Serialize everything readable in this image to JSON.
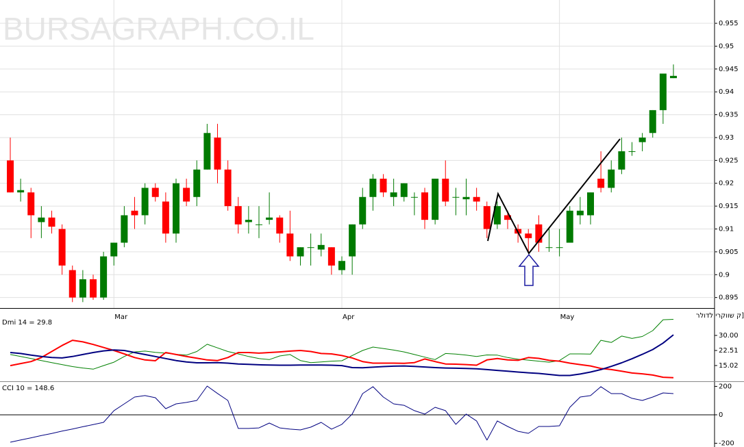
{
  "chart_data": [
    {
      "type": "candlestick",
      "title": "ק שווקרי לדולר]",
      "watermark": "BURSAGRAPH.CO.IL",
      "categories": [
        null,
        null,
        null,
        null,
        null,
        null,
        null,
        null,
        null,
        null,
        "Mar",
        null,
        null,
        null,
        null,
        null,
        null,
        null,
        null,
        null,
        null,
        null,
        null,
        null,
        null,
        null,
        null,
        null,
        null,
        null,
        null,
        null,
        "Apr",
        null,
        null,
        null,
        null,
        null,
        null,
        null,
        null,
        null,
        null,
        null,
        null,
        null,
        null,
        null,
        null,
        null,
        null,
        null,
        null,
        "May",
        null,
        null,
        null,
        null,
        null,
        null,
        null,
        null,
        null,
        null,
        null
      ],
      "open": [
        0.925,
        0.918,
        0.918,
        0.9115,
        0.9125,
        0.91,
        0.901,
        0.895,
        0.899,
        0.895,
        0.904,
        0.907,
        0.914,
        0.913,
        0.919,
        0.916,
        0.909,
        0.919,
        0.917,
        0.923,
        0.93,
        0.923,
        0.915,
        0.9115,
        0.911,
        0.912,
        0.9125,
        0.909,
        0.904,
        0.906,
        0.9055,
        0.906,
        0.901,
        0.904,
        0.911,
        0.917,
        0.921,
        0.917,
        0.917,
        0.917,
        0.918,
        0.912,
        0.921,
        0.917,
        0.9165,
        0.917,
        0.915,
        0.911,
        0.913,
        0.91,
        0.909,
        0.911,
        0.906,
        0.906,
        0.907,
        0.913,
        0.913,
        0.921,
        0.919,
        0.923,
        0.927,
        0.929,
        0.931,
        0.936,
        0.943
      ],
      "high": [
        0.93,
        0.921,
        0.919,
        0.915,
        0.914,
        0.911,
        0.902,
        0.901,
        0.9,
        0.905,
        0.907,
        0.915,
        0.917,
        0.92,
        0.92,
        0.918,
        0.921,
        0.921,
        0.925,
        0.933,
        0.933,
        0.925,
        0.917,
        0.915,
        0.915,
        0.918,
        0.913,
        0.914,
        0.906,
        0.909,
        0.909,
        0.906,
        0.904,
        0.911,
        0.919,
        0.922,
        0.922,
        0.921,
        0.92,
        0.918,
        0.919,
        0.921,
        0.925,
        0.919,
        0.921,
        0.919,
        0.916,
        0.916,
        0.914,
        0.911,
        0.91,
        0.913,
        0.91,
        0.91,
        0.915,
        0.917,
        0.918,
        0.927,
        0.925,
        0.93,
        0.929,
        0.931,
        0.936,
        0.944,
        0.946
      ],
      "low": [
        0.918,
        0.916,
        0.908,
        0.908,
        0.909,
        0.9,
        0.894,
        0.894,
        0.8945,
        0.8945,
        0.902,
        0.906,
        0.91,
        0.911,
        0.916,
        0.907,
        0.907,
        0.915,
        0.915,
        0.923,
        0.92,
        0.914,
        0.909,
        0.909,
        0.908,
        0.911,
        0.907,
        0.903,
        0.902,
        0.902,
        0.904,
        0.9,
        0.9,
        0.9,
        0.91,
        0.914,
        0.917,
        0.915,
        0.916,
        0.913,
        0.91,
        0.911,
        0.915,
        0.913,
        0.913,
        0.914,
        0.908,
        0.91,
        0.91,
        0.907,
        0.905,
        0.905,
        0.905,
        0.904,
        0.907,
        0.911,
        0.911,
        0.918,
        0.918,
        0.922,
        0.926,
        0.927,
        0.93,
        0.933,
        0.943
      ],
      "close": [
        0.918,
        0.9185,
        0.913,
        0.9125,
        0.9105,
        0.902,
        0.895,
        0.899,
        0.895,
        0.904,
        0.907,
        0.913,
        0.913,
        0.919,
        0.917,
        0.909,
        0.92,
        0.916,
        0.923,
        0.931,
        0.923,
        0.915,
        0.911,
        0.912,
        0.911,
        0.9125,
        0.909,
        0.904,
        0.906,
        0.906,
        0.9065,
        0.902,
        0.903,
        0.911,
        0.917,
        0.921,
        0.918,
        0.918,
        0.92,
        0.917,
        0.912,
        0.921,
        0.916,
        0.917,
        0.917,
        0.916,
        0.91,
        0.915,
        0.912,
        0.909,
        0.908,
        0.907,
        0.906,
        0.906,
        0.914,
        0.914,
        0.918,
        0.919,
        0.923,
        0.927,
        0.927,
        0.93,
        0.936,
        0.944,
        0.9435
      ],
      "up_color": "#007a00",
      "down_color": "#ff0000",
      "ylim": [
        0.8927,
        0.9601
      ],
      "yticks": [
        0.895,
        0.9,
        0.905,
        0.91,
        0.915,
        0.92,
        0.925,
        0.93,
        0.935,
        0.94,
        0.945,
        0.95,
        0.955
      ],
      "grid": true
    },
    {
      "type": "line",
      "title": "Dmi 14 = 29.8",
      "series": [
        {
          "color": "#008000",
          "width": 1,
          "values": [
            20.5,
            19.5,
            18.5,
            17.5,
            16.5,
            15.5,
            14.5,
            13.8,
            13.2,
            15,
            16.7,
            19.5,
            21.8,
            22.2,
            21.6,
            21.2,
            20.6,
            20.2,
            22,
            25.6,
            23.8,
            22,
            20.8,
            19.5,
            18.5,
            18,
            19.8,
            20.5,
            17.5,
            16.5,
            16.8,
            17.2,
            17.4,
            20,
            22.5,
            24.2,
            23.5,
            22.7,
            21.8,
            20.5,
            19.2,
            18,
            21,
            20.7,
            20.2,
            19.5,
            20.3,
            20.2,
            19,
            18.2,
            17.7,
            17.2,
            16.7,
            17.5,
            20.8,
            20.8,
            20.7,
            27.6,
            26.5,
            29.7,
            28.5,
            29.5,
            32.4,
            37.8,
            38
          ]
        },
        {
          "color": "#ff0000",
          "width": 2,
          "values": [
            15,
            16,
            17,
            19,
            22,
            25,
            27.6,
            26.8,
            25.5,
            24,
            22.5,
            20.8,
            19,
            17.8,
            17.4,
            21.5,
            20.5,
            19.5,
            18.7,
            17.8,
            17.5,
            19,
            21.5,
            21.5,
            21.2,
            21.5,
            21.8,
            22.2,
            22.5,
            22,
            21,
            20.8,
            20,
            18.8,
            17,
            16.2,
            16.2,
            16.2,
            16.1,
            16.5,
            18.3,
            17,
            15.8,
            15.7,
            15.5,
            15.2,
            17.8,
            18.5,
            17.8,
            17.6,
            19,
            18.6,
            17.6,
            17.2,
            16.2,
            15.5,
            14.8,
            13.6,
            13,
            12.2,
            11.3,
            10.9,
            10.3,
            9.2,
            9.0
          ]
        },
        {
          "color": "#000080",
          "width": 2,
          "values": [
            21.5,
            21,
            20.2,
            19.5,
            19,
            18.8,
            19.5,
            20.5,
            21.5,
            22.3,
            22.8,
            22.5,
            21.5,
            20.5,
            19.5,
            18.5,
            17.5,
            16.8,
            16.4,
            16.4,
            16.5,
            16.2,
            15.8,
            15.6,
            15.4,
            15.3,
            15.2,
            15.2,
            15.3,
            15.3,
            15.3,
            15.2,
            15.0,
            14.0,
            13.9,
            14.2,
            14.5,
            14.7,
            14.8,
            14.6,
            14.3,
            14.0,
            13.8,
            13.7,
            13.6,
            13.4,
            13.0,
            12.6,
            12.2,
            11.8,
            11.4,
            11.1,
            10.6,
            10.1,
            10.1,
            10.8,
            11.8,
            13.0,
            14.6,
            16.4,
            18.4,
            20.6,
            23.0,
            26.2,
            30.3
          ]
        }
      ],
      "ylim": [
        7.19,
        42.6
      ],
      "yticks": [
        {
          "value": 15.02,
          "label": "15.02"
        },
        {
          "value": 22.51,
          "label": "22.51"
        },
        {
          "value": 30,
          "label": "30.00"
        }
      ]
    },
    {
      "type": "line",
      "title": "CCI 10 = 148.6",
      "series": [
        {
          "color": "#000080",
          "width": 1,
          "values": [
            -193,
            -177,
            -162,
            -146,
            -131,
            -115,
            -100,
            -84,
            -69,
            -53,
            29,
            77,
            125,
            135,
            120,
            43,
            77,
            87,
            101,
            202,
            150,
            101,
            -96,
            -96,
            -92,
            -58,
            -92,
            -101,
            -106,
            -87,
            -53,
            -101,
            -67,
            5,
            149,
            198,
            125,
            77,
            67,
            29,
            5,
            53,
            29,
            -67,
            5,
            -43,
            -178,
            -43,
            -82,
            -116,
            -130,
            -82,
            -82,
            -77,
            53,
            125,
            135,
            198,
            149,
            149,
            116,
            101,
            125,
            154,
            149
          ]
        }
      ],
      "ylim": [
        -226.5,
        231
      ],
      "yticks": [
        -200,
        0,
        200
      ]
    }
  ]
}
